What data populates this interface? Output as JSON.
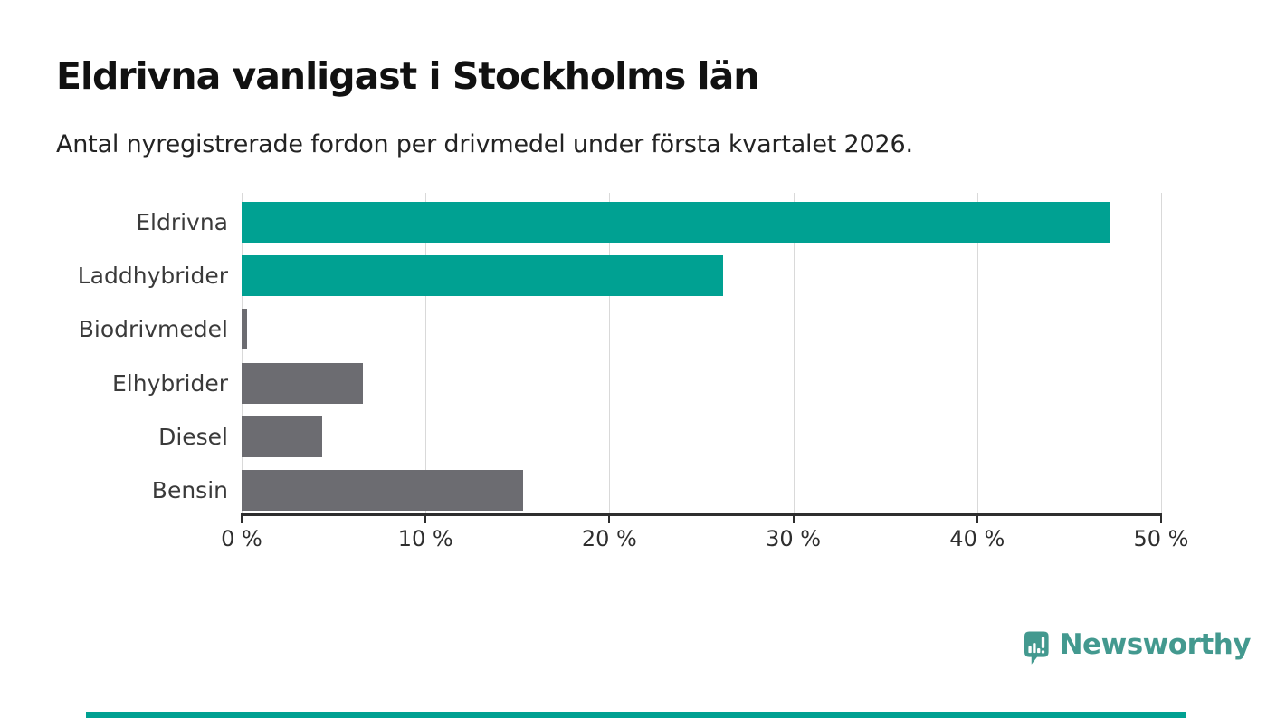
{
  "header": {
    "title": "Eldrivna vanligast i Stockholms län",
    "subtitle": "Antal nyregistrerade fordon per drivmedel under första kvartalet 2026."
  },
  "chart_data": {
    "type": "bar",
    "orientation": "horizontal",
    "title": "Eldrivna vanligast i Stockholms län",
    "subtitle": "Antal nyregistrerade fordon per drivmedel under första kvartalet 2026.",
    "categories": [
      "Eldrivna",
      "Laddhybrider",
      "Biodrivmedel",
      "Elhybrider",
      "Diesel",
      "Bensin"
    ],
    "values": [
      47.2,
      26.2,
      0.3,
      6.6,
      4.4,
      15.3
    ],
    "unit": "%",
    "xlabel": "",
    "ylabel": "",
    "xlim": [
      0,
      50
    ],
    "x_tick_values": [
      0,
      10,
      20,
      30,
      40,
      50
    ],
    "x_tick_labels": [
      "0 %",
      "10 %",
      "20 %",
      "30 %",
      "40 %",
      "50 %"
    ],
    "grid": true,
    "legend": false,
    "bar_colors": [
      "#00a192",
      "#00a192",
      "#6c6c71",
      "#6c6c71",
      "#6c6c71",
      "#6c6c71"
    ]
  },
  "branding": {
    "name": "Newsworthy",
    "logo_icon": "newsworthy-pin-bar-chart-icon",
    "brand_color": "#43998f",
    "accent_color": "#00a192"
  },
  "colors": {
    "teal_bar": "#00a192",
    "gray_bar": "#6c6c71",
    "gridline": "#d9d9d9",
    "axis": "#2e2e2e",
    "text_dark": "#111111",
    "brand_teal": "#43998f",
    "background": "#ffffff"
  }
}
